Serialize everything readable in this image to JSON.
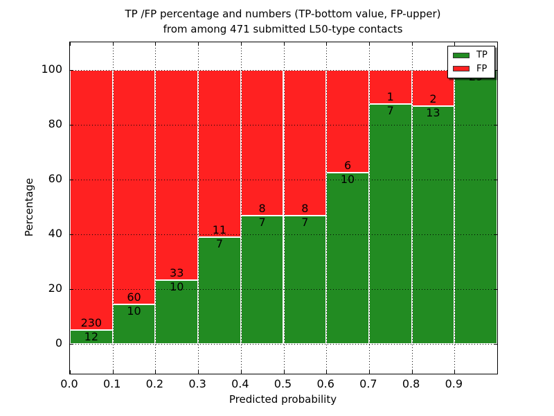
{
  "title": {
    "line1": "TP /FP percentage and numbers (TP-bottom value, FP-upper)",
    "line2": "from among 471 submitted L50-type contacts"
  },
  "axes": {
    "xlabel": "Predicted probability",
    "ylabel": "Percentage",
    "xtick_labels": [
      "0.0",
      "0.1",
      "0.2",
      "0.3",
      "0.4",
      "0.5",
      "0.6",
      "0.7",
      "0.8",
      "0.9"
    ],
    "ytick_labels": [
      "0",
      "20",
      "40",
      "60",
      "80",
      "100"
    ]
  },
  "chart_data": {
    "type": "bar",
    "subtype": "stacked-percentage",
    "title": "TP /FP percentage and numbers (TP-bottom value, FP-upper) from among 471 submitted L50-type contacts",
    "xlabel": "Predicted probability",
    "ylabel": "Percentage",
    "xlim": [
      0.0,
      1.0
    ],
    "ylim": [
      -11,
      110
    ],
    "yticks": [
      0,
      20,
      40,
      60,
      80,
      100
    ],
    "xticks": [
      0.0,
      0.1,
      0.2,
      0.3,
      0.4,
      0.5,
      0.6,
      0.7,
      0.8,
      0.9
    ],
    "grid": "dotted",
    "legend_position": "upper right",
    "total_submitted": 471,
    "categories": [
      "0.0-0.1",
      "0.1-0.2",
      "0.2-0.3",
      "0.3-0.4",
      "0.4-0.5",
      "0.5-0.6",
      "0.6-0.7",
      "0.7-0.8",
      "0.8-0.9",
      "0.9-1.0"
    ],
    "series": [
      {
        "name": "TP",
        "color": "#228b22",
        "counts": [
          12,
          10,
          10,
          7,
          7,
          7,
          10,
          7,
          13,
          29
        ],
        "percent": [
          4.96,
          14.29,
          23.26,
          38.89,
          46.67,
          46.67,
          62.5,
          87.5,
          86.67,
          100
        ]
      },
      {
        "name": "FP",
        "color": "#ff2121",
        "counts": [
          230,
          60,
          33,
          11,
          8,
          8,
          6,
          1,
          2,
          0
        ],
        "percent": [
          95.04,
          85.71,
          76.74,
          61.11,
          53.33,
          53.33,
          37.5,
          12.5,
          13.33,
          0
        ]
      }
    ],
    "bar_value_labels": {
      "tp": [
        "12",
        "10",
        "10",
        "7",
        "7",
        "7",
        "10",
        "7",
        "13",
        "29"
      ],
      "fp": [
        "230",
        "60",
        "33",
        "11",
        "8",
        "8",
        "6",
        "1",
        "2",
        ""
      ]
    },
    "legend": {
      "entries": [
        {
          "label": "TP",
          "color": "#228b22"
        },
        {
          "label": "FP",
          "color": "#ff2121"
        }
      ]
    }
  },
  "colors": {
    "tp_green": "#228b22",
    "fp_red": "#ff2121",
    "grid": "#000000",
    "background": "#ffffff",
    "text": "#000000"
  }
}
